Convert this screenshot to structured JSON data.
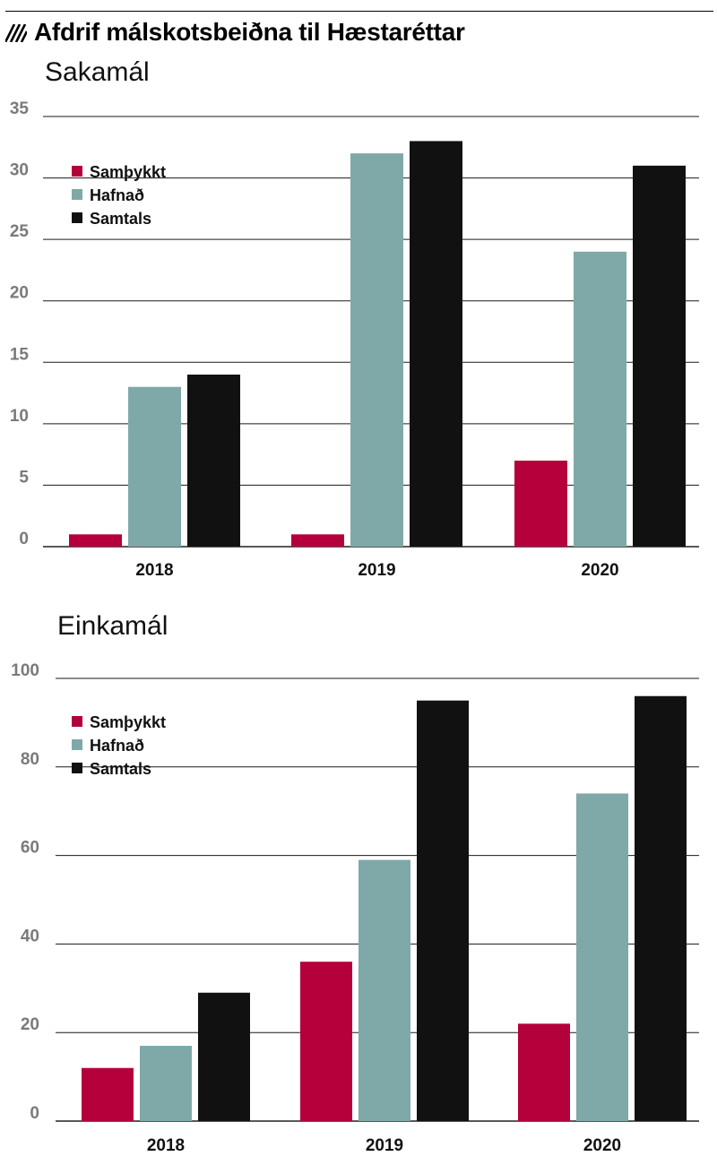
{
  "title": "Afdrif málskotsbeiðna til Hæstaréttar",
  "colors": {
    "samthykkt": "#b4013b",
    "hafnad": "#7fa9a8",
    "samtals": "#111111",
    "grid": "#1a1a1a",
    "tick": "#7a7a7a"
  },
  "chart_data": [
    {
      "type": "bar",
      "title": "Sakamál",
      "categories": [
        "2018",
        "2019",
        "2020"
      ],
      "series": [
        {
          "name": "Samþykkt",
          "values": [
            1,
            1,
            7
          ]
        },
        {
          "name": "Hafnað",
          "values": [
            13,
            32,
            24
          ]
        },
        {
          "name": "Samtals",
          "values": [
            14,
            33,
            31
          ]
        }
      ],
      "yticks": [
        "0",
        "5",
        "10",
        "15",
        "20",
        "25",
        "30",
        "35"
      ],
      "ylim": [
        0,
        35
      ],
      "legend": "top-left",
      "grid": true
    },
    {
      "type": "bar",
      "title": "Einkamál",
      "categories": [
        "2018",
        "2019",
        "2020"
      ],
      "series": [
        {
          "name": "Samþykkt",
          "values": [
            12,
            36,
            22
          ]
        },
        {
          "name": "Hafnað",
          "values": [
            17,
            59,
            74
          ]
        },
        {
          "name": "Samtals",
          "values": [
            29,
            95,
            96
          ]
        }
      ],
      "yticks": [
        "0",
        "20",
        "40",
        "60",
        "80",
        "100"
      ],
      "ylim": [
        0,
        100
      ],
      "legend": "top-left",
      "grid": true
    }
  ]
}
